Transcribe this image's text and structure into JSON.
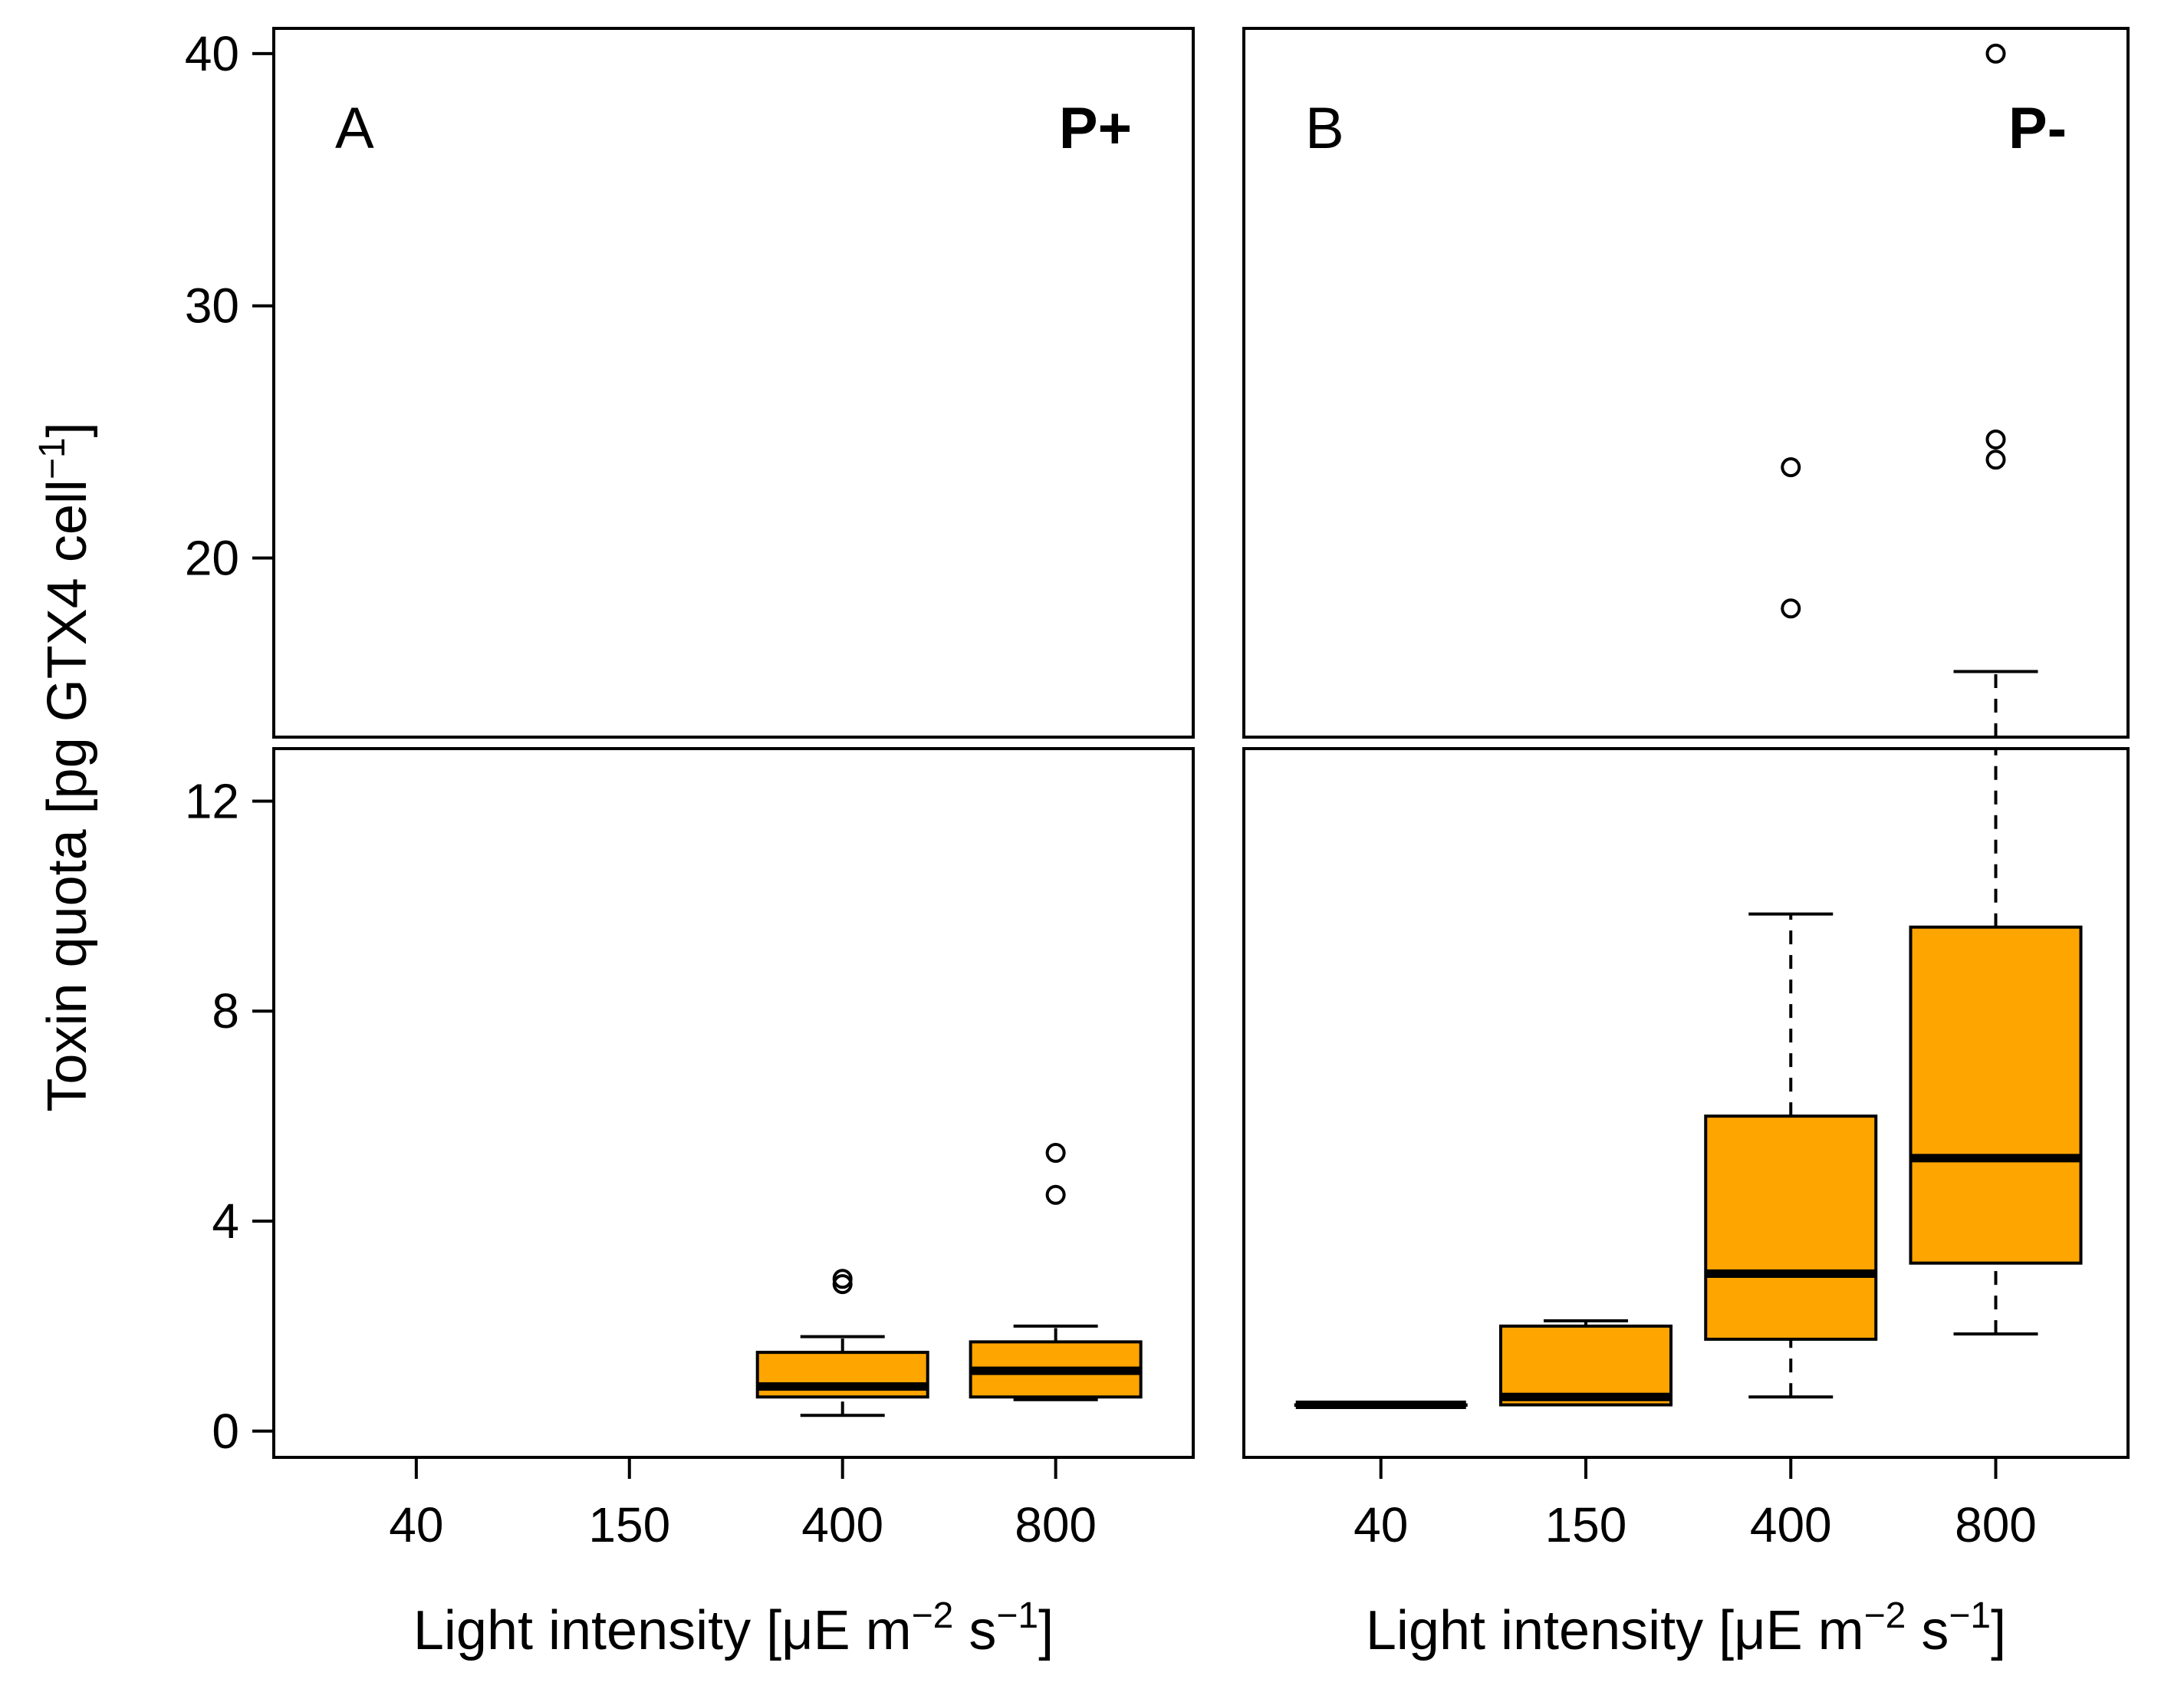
{
  "chart_data": {
    "type": "boxplot",
    "y_axis": {
      "label_main": "Toxin quota [pg GTX4 cell",
      "label_sup": "−1",
      "label_close": "]",
      "upper_segment": {
        "range": [
          12.9,
          41
        ],
        "ticks": [
          20,
          30,
          40
        ],
        "tick_labels": [
          "20",
          "30",
          "40"
        ]
      },
      "lower_segment": {
        "range": [
          -0.5,
          13
        ],
        "ticks": [
          0,
          4,
          8,
          12
        ],
        "tick_labels": [
          "0",
          "4",
          "8",
          "12"
        ]
      }
    },
    "x_axis": {
      "categories": [
        "40",
        "150",
        "400",
        "800"
      ],
      "label_main": "Light intensity [μE m",
      "label_sup1": "−2",
      "label_mid": " s",
      "label_sup2": "−1",
      "label_close": "]"
    },
    "box_color": "#FFA500",
    "panels": [
      {
        "letter": "A",
        "condition": "P+",
        "boxes": [
          {
            "category": "40",
            "present": false
          },
          {
            "category": "150",
            "present": false
          },
          {
            "category": "400",
            "present": true,
            "whisker_low": 0.3,
            "q1": 0.65,
            "median": 0.85,
            "q3": 1.5,
            "whisker_high": 1.8,
            "outliers": [
              2.8,
              2.9
            ]
          },
          {
            "category": "800",
            "present": true,
            "whisker_low": 0.6,
            "q1": 0.65,
            "median": 1.15,
            "q3": 1.7,
            "whisker_high": 2.0,
            "outliers": [
              4.5,
              5.3
            ]
          }
        ]
      },
      {
        "letter": "B",
        "condition": "P-",
        "boxes": [
          {
            "category": "40",
            "present": true,
            "whisker_low": 0.5,
            "q1": 0.5,
            "median": 0.5,
            "q3": 0.5,
            "whisker_high": 0.5,
            "outliers": []
          },
          {
            "category": "150",
            "present": true,
            "whisker_low": 0.5,
            "q1": 0.5,
            "median": 0.65,
            "q3": 2.0,
            "whisker_high": 2.1,
            "outliers": []
          },
          {
            "category": "400",
            "present": true,
            "whisker_low": 0.65,
            "q1": 1.75,
            "median": 3.0,
            "q3": 6.0,
            "whisker_high": 9.85,
            "outliers": [
              18,
              23.6
            ]
          },
          {
            "category": "800",
            "present": true,
            "whisker_low": 1.85,
            "q1": 3.2,
            "median": 5.2,
            "q3": 9.6,
            "whisker_high": 15.5,
            "outliers": [
              23.9,
              24.7,
              40
            ]
          }
        ]
      }
    ]
  }
}
